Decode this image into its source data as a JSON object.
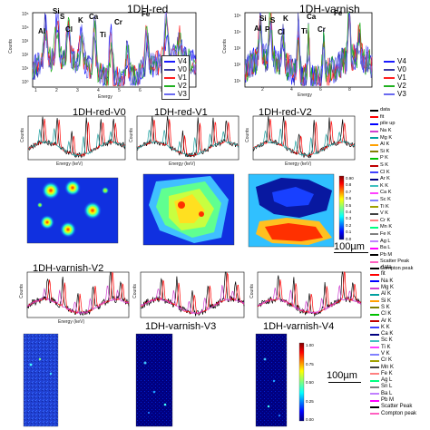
{
  "top_left": {
    "title": "1DH-red",
    "ylabel": "Counts",
    "xlabel": "Energy",
    "xticks": [
      "1",
      "2",
      "3",
      "4",
      "5",
      "6",
      "7",
      "8"
    ],
    "yticks": [
      "10⁵",
      "10⁴",
      "10³",
      "10²",
      "10¹",
      "10⁰"
    ],
    "elements": [
      "Al",
      "Si",
      "S",
      "Cl",
      "K",
      "Ca",
      "Ti",
      "Cr",
      "Fe"
    ],
    "legend": [
      "V4",
      "V0",
      "V1",
      "V2",
      "V3"
    ]
  },
  "top_right": {
    "title": "1DH-varnish",
    "ylabel": "Counts",
    "xlabel": "Energy",
    "xticks": [
      "2",
      "4",
      "6",
      "8"
    ],
    "yticks": [
      "10⁵",
      "10⁴",
      "10³",
      "10²",
      "10¹"
    ],
    "elements": [
      "Si",
      "S",
      "K",
      "Ca",
      "Fe",
      "Al",
      "P",
      "Cl",
      "Ti",
      "Cr"
    ],
    "legend": [
      "V4",
      "V0",
      "V1",
      "V2",
      "V3"
    ]
  },
  "mid_panels": [
    {
      "title": "1DH-red-V0",
      "xlabel": "Energy (keV)"
    },
    {
      "title": "1DH-red-V1",
      "xlabel": "Energy (keV)"
    },
    {
      "title": "1DH-red-V2",
      "xlabel": "Energy (keV)"
    }
  ],
  "bot_panels": [
    {
      "title": "1DH-varnish-V2",
      "xlabel": "Energy (keV)"
    },
    {
      "title": "1DH-varnish-V3",
      "xlabel": "Energy (keV)"
    },
    {
      "title": "1DH-varnish-V4",
      "xlabel": "Energy (keV)"
    }
  ],
  "counts_label": "Counts",
  "mid_colorbar_ticks": [
    "0.90",
    "0.8",
    "0.7",
    "0.6",
    "0.5",
    "0.4",
    "0.3",
    "0.2",
    "0.1",
    "0.0"
  ],
  "bot_colorbar_ticks": [
    "1.00",
    "0.75",
    "0.50",
    "0.25",
    "0.00"
  ],
  "scale_mid": "100µm",
  "scale_bot": "100µm",
  "legend_mid": [
    "data",
    "fit",
    "pile up",
    "Na K",
    "Mg K",
    "Al K",
    "Si K",
    "P K",
    "S K",
    "Cl K",
    "Ar K",
    "K K",
    "Ca K",
    "Sc K",
    "Ti K",
    "V K",
    "Cr K",
    "Mn K",
    "Fe K",
    "Ag L",
    "Ba L",
    "Pb M",
    "Scatter Peak",
    "Compton peak"
  ],
  "legend_bot": [
    "data",
    "fit",
    "Na K",
    "Mg K",
    "Al K",
    "Si K",
    "S K",
    "Cl K",
    "Ar K",
    "K K",
    "Ca K",
    "Sc K",
    "Ti K",
    "V K",
    "Cr K",
    "Mn K",
    "Fe K",
    "Ag L",
    "Sn L",
    "Ba L",
    "Pb M",
    "Scatter Peak",
    "Compton peak"
  ],
  "colors": {
    "v4": "#1a1aff",
    "v0": "#3a3aa0",
    "v1": "#ff2020",
    "v2": "#20b020",
    "v3": "#6a6af0",
    "legend_series": [
      "#000000",
      "#ff0000",
      "#0000ff",
      "#d040d0",
      "#00a0a0",
      "#ffa000",
      "#808000",
      "#00c000",
      "#c00000",
      "#4040ff",
      "#000080",
      "#40c0c0",
      "#ff40ff",
      "#8080ff",
      "#a0a000",
      "#404040",
      "#ff8080",
      "#00ff80",
      "#808080",
      "#c080ff",
      "#ff00ff",
      "#000000",
      "#ff60c0",
      "#4060ff"
    ]
  }
}
